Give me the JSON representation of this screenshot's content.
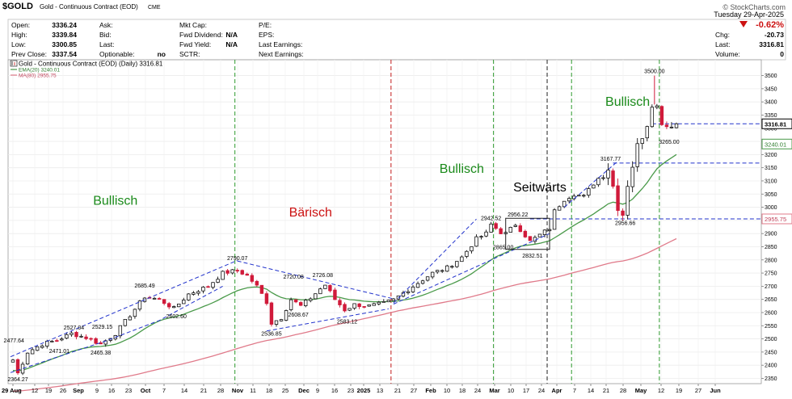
{
  "header": {
    "symbol": "$GOLD",
    "name": "Gold - Continuous Contract (EOD)",
    "exchange": "CME",
    "credit": "© StockCharts.com",
    "date": "Tuesday 29-Apr-2025",
    "change_pct": "-0.62%",
    "chg_label": "Chg:",
    "chg_value": "-20.73",
    "last_label": "Last:",
    "last_value": "3316.81",
    "volume_label": "Volume:",
    "volume_value": "0",
    "quote_fields": [
      {
        "label": "Open:",
        "value": "3336.24"
      },
      {
        "label": "High:",
        "value": "3339.84"
      },
      {
        "label": "Low:",
        "value": "3300.85"
      },
      {
        "label": "Prev Close:",
        "value": "3337.54"
      }
    ],
    "mid_fields": [
      {
        "label": "Ask:",
        "value": ""
      },
      {
        "label": "Bid:",
        "value": ""
      },
      {
        "label": "Last:",
        "value": ""
      },
      {
        "label": "Optionable:",
        "value": "no"
      }
    ],
    "fund_fields": [
      {
        "label": "Mkt Cap:",
        "value": ""
      },
      {
        "label": "Fwd Dividend:",
        "value": "N/A"
      },
      {
        "label": "Fwd Yield:",
        "value": "N/A"
      },
      {
        "label": "SCTR:",
        "value": ""
      }
    ],
    "earn_fields": [
      {
        "label": "P/E:",
        "value": ""
      },
      {
        "label": "EPS:",
        "value": ""
      },
      {
        "label": "Last Earnings:",
        "value": ""
      },
      {
        "label": "Next Earnings:",
        "value": ""
      }
    ]
  },
  "legend": {
    "price": "Gold - Continuous Contract (EOD) (Daily) 3316.81",
    "ema": "EMA(20) 3240.01",
    "ma": "MA(80) 2955.75"
  },
  "colors": {
    "up": "#111111",
    "down": "#d01a3a",
    "ema": "#4a9a4a",
    "ma": "#e07a8a",
    "trend": "#2233cc",
    "bull_text": "#1a8a1a",
    "bear_text": "#cc1111",
    "divider_green": "#2e9a2e",
    "divider_red": "#c41c1c"
  },
  "chart_data": {
    "type": "candlestick",
    "ylim": [
      2330,
      3560
    ],
    "y_ticks": [
      2350,
      2400,
      2450,
      2500,
      2550,
      2600,
      2650,
      2700,
      2750,
      2800,
      2850,
      2900,
      2950,
      3000,
      3050,
      3100,
      3150,
      3200,
      3250,
      3300,
      3350,
      3400,
      3450,
      3500
    ],
    "x_labels": [
      "29 Aug",
      "12",
      "19",
      "26",
      "Sep",
      "9",
      "16",
      "23",
      "Oct",
      "7",
      "14",
      "21",
      "28",
      "Nov",
      "11",
      "18",
      "25",
      "Dec",
      "9",
      "16",
      "23",
      "2025",
      "13",
      "21",
      "27",
      "Feb",
      "10",
      "18",
      "24",
      "Mar",
      "10",
      "17",
      "24",
      "Apr",
      "7",
      "14",
      "21",
      "28",
      "May",
      "12",
      "19",
      "27",
      "Jun"
    ],
    "price_tags": [
      {
        "label": "3316.81",
        "value": 3316.81,
        "type": "last"
      },
      {
        "label": "3240.01",
        "value": 3240.01,
        "type": "ema"
      },
      {
        "label": "2955.75",
        "value": 2955.75,
        "type": "ma"
      }
    ],
    "annotations": [
      {
        "text": "2477.64",
        "t": 0.2,
        "value": 2477.64
      },
      {
        "text": "2364.27",
        "t": 1.0,
        "value": 2364.27
      },
      {
        "text": "2527.04",
        "t": 12.5,
        "value": 2527.04
      },
      {
        "text": "2471.01",
        "t": 9.5,
        "value": 2471.01
      },
      {
        "text": "2529.15",
        "t": 18.3,
        "value": 2529.15
      },
      {
        "text": "2465.38",
        "t": 18.0,
        "value": 2465.38
      },
      {
        "text": "2685.49",
        "t": 27.0,
        "value": 2685.49
      },
      {
        "text": "2602.60",
        "t": 33.5,
        "value": 2602.6
      },
      {
        "text": "2790.07",
        "t": 46.0,
        "value": 2790.07
      },
      {
        "text": "2536.85",
        "t": 53.0,
        "value": 2536.85
      },
      {
        "text": "2720.08",
        "t": 57.5,
        "value": 2720.08
      },
      {
        "text": "2608.67",
        "t": 58.5,
        "value": 2608.67
      },
      {
        "text": "2726.08",
        "t": 63.5,
        "value": 2726.08
      },
      {
        "text": "2583.12",
        "t": 68.5,
        "value": 2583.12
      },
      {
        "text": "2942.52",
        "t": 98.0,
        "value": 2942.52
      },
      {
        "text": "2956.22",
        "t": 103.5,
        "value": 2956.22
      },
      {
        "text": "2865.00",
        "t": 100.5,
        "value": 2865.0
      },
      {
        "text": "2832.51",
        "t": 106.5,
        "value": 2832.51
      },
      {
        "text": "3167.77",
        "t": 122.5,
        "value": 3167.77
      },
      {
        "text": "2956.66",
        "t": 125.5,
        "value": 2956.66
      },
      {
        "text": "3500.00",
        "t": 131.5,
        "value": 3500.0
      },
      {
        "text": "3265.00",
        "t": 134.5,
        "value": 3265.0
      }
    ],
    "phase_labels": [
      {
        "text": "Bullisch",
        "t": 21,
        "value": 3010,
        "kind": "bull"
      },
      {
        "text": "Bärisch",
        "t": 61,
        "value": 2965,
        "kind": "bear"
      },
      {
        "text": "Bullisch",
        "t": 92,
        "value": 3130,
        "kind": "bull"
      },
      {
        "text": "Seitwärts",
        "t": 108,
        "value": 3060,
        "kind": "side"
      },
      {
        "text": "Bullisch",
        "t": 126,
        "value": 3385,
        "kind": "bull"
      }
    ],
    "dividers": [
      {
        "t": 45.5,
        "color": "green"
      },
      {
        "t": 77.5,
        "color": "red"
      },
      {
        "t": 98.5,
        "color": "green"
      },
      {
        "t": 109.5,
        "color": "black"
      },
      {
        "t": 114.5,
        "color": "green"
      },
      {
        "t": 132.5,
        "color": "green"
      }
    ],
    "trendlines": [
      {
        "points": [
          [
            -0.5,
            2432
          ],
          [
            46,
            2798
          ]
        ]
      },
      {
        "points": [
          [
            -0.5,
            2372
          ],
          [
            19,
            2492
          ],
          [
            30,
            2570
          ],
          [
            43,
            2700
          ]
        ]
      },
      {
        "points": [
          [
            46,
            2796
          ],
          [
            78,
            2652
          ]
        ]
      },
      {
        "points": [
          [
            52,
            2530
          ],
          [
            77,
            2614
          ]
        ]
      },
      {
        "points": [
          [
            78,
            2636
          ],
          [
            95,
            2955
          ]
        ]
      },
      {
        "points": [
          [
            78,
            2632
          ],
          [
            110,
            2900
          ]
        ]
      },
      {
        "points": [
          [
            113,
            3000
          ],
          [
            124,
            3175
          ]
        ]
      }
    ],
    "hlines": [
      {
        "value": 3316.81,
        "from_t": 131
      },
      {
        "value": 3167.77,
        "from_t": 123
      },
      {
        "value": 2955.75,
        "from_t": 106
      }
    ],
    "consolidation_box": {
      "t0": 101,
      "t1": 110,
      "v0": 2840,
      "v1": 2958
    }
  }
}
